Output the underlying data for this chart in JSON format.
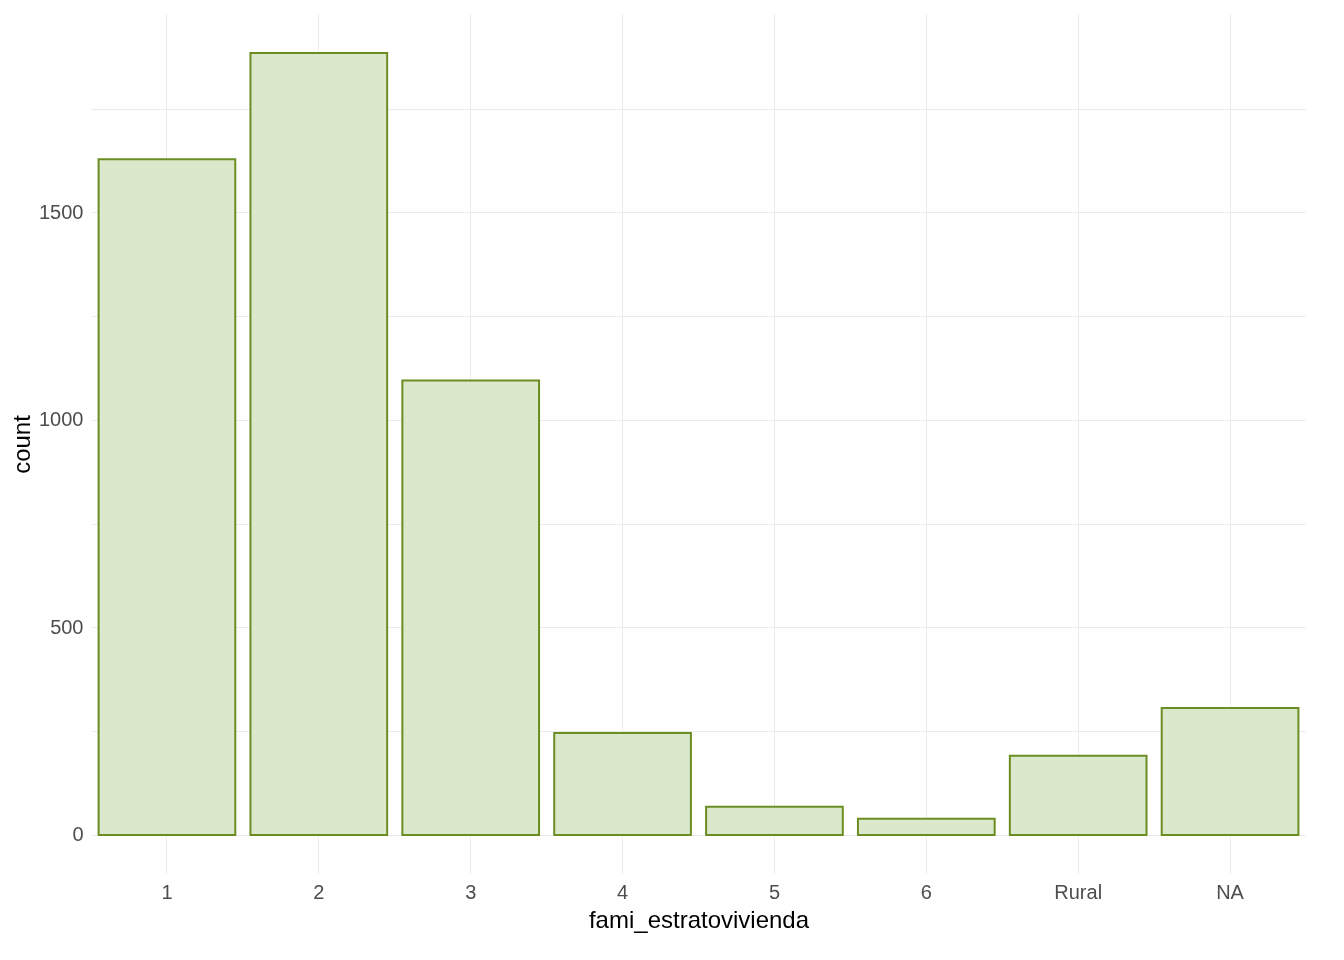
{
  "chart_data": {
    "type": "bar",
    "xlabel": "fami_estratovivienda",
    "ylabel": "count",
    "categories": [
      "1",
      "2",
      "3",
      "4",
      "5",
      "6",
      "Rural",
      "NA"
    ],
    "values": [
      1628,
      1884,
      1095,
      246,
      68,
      39,
      191,
      306
    ],
    "color": "#dbe8cc",
    "ylim": [
      -94,
      1978
    ],
    "yticks": [
      0,
      {
        "value": 250,
        "label": null
      },
      500,
      {
        "value": 750,
        "label": null
      },
      1000,
      {
        "value": 1250,
        "label": null
      },
      1500,
      {
        "value": 1750,
        "label": null
      }
    ],
    "grid": true
  }
}
